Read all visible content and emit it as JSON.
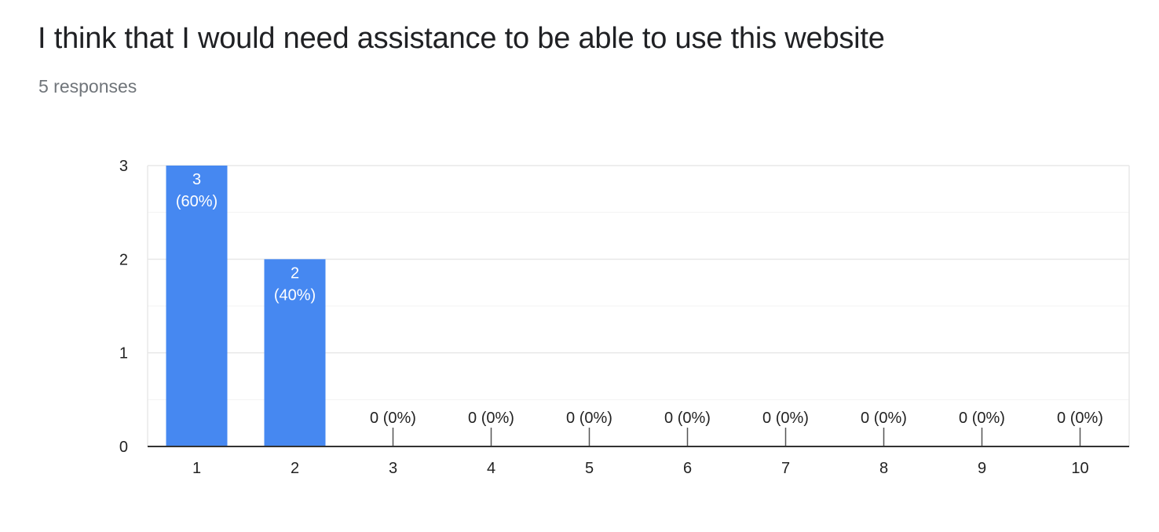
{
  "question": {
    "title": "I think that I would need assistance to be able to use this website",
    "responses": "5 responses"
  },
  "colors": {
    "bar": "#4688f1",
    "grid": "#e8e8e8",
    "minor_grid": "#f3f3f3",
    "axis": "#333333",
    "text": "#222222"
  },
  "chart_data": {
    "type": "bar",
    "categories": [
      "1",
      "2",
      "3",
      "4",
      "5",
      "6",
      "7",
      "8",
      "9",
      "10"
    ],
    "values": [
      3,
      2,
      0,
      0,
      0,
      0,
      0,
      0,
      0,
      0
    ],
    "data_labels": [
      "3\n(60%)",
      "2\n(40%)",
      "0 (0%)",
      "0 (0%)",
      "0 (0%)",
      "0 (0%)",
      "0 (0%)",
      "0 (0%)",
      "0 (0%)",
      "0 (0%)"
    ],
    "title": "",
    "xlabel": "",
    "ylabel": "",
    "ylim": [
      0,
      3
    ],
    "yticks": [
      "0",
      "1",
      "2",
      "3"
    ],
    "grid": true,
    "legend": "none"
  }
}
